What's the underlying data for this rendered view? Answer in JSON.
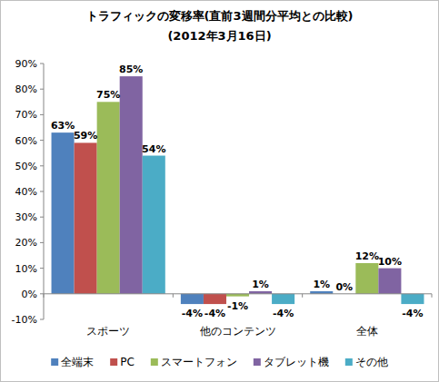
{
  "chart_data": {
    "type": "bar",
    "title": "トラフィックの変移率(直前3週間分平均との比較)",
    "subtitle": "(2012年3月16日)",
    "categories": [
      "スポーツ",
      "他のコンテンツ",
      "全体"
    ],
    "series": [
      {
        "name": "全端末",
        "color": "#4f81bd",
        "values": [
          63,
          -4,
          1
        ],
        "value_labels": [
          "63%",
          "-4%",
          "1%"
        ]
      },
      {
        "name": "PC",
        "color": "#c0504d",
        "values": [
          59,
          -4,
          0
        ],
        "value_labels": [
          "59%",
          "-4%",
          "0%"
        ]
      },
      {
        "name": "スマートフォン",
        "color": "#9bbb59",
        "values": [
          75,
          -1,
          12
        ],
        "value_labels": [
          "75%",
          "-1%",
          "12%"
        ]
      },
      {
        "name": "タブレット機",
        "color": "#8064a2",
        "values": [
          85,
          1,
          10
        ],
        "value_labels": [
          "85%",
          "1%",
          "10%"
        ]
      },
      {
        "name": "その他",
        "color": "#4bacc6",
        "values": [
          54,
          -4,
          -4
        ],
        "value_labels": [
          "54%",
          "-4%",
          "-4%"
        ]
      }
    ],
    "ylim": [
      -10,
      90
    ],
    "yticks": [
      {
        "value": -10,
        "label": "-10%"
      },
      {
        "value": 0,
        "label": "0%"
      },
      {
        "value": 10,
        "label": "10%"
      },
      {
        "value": 20,
        "label": "20%"
      },
      {
        "value": 30,
        "label": "30%"
      },
      {
        "value": 40,
        "label": "40%"
      },
      {
        "value": 50,
        "label": "50%"
      },
      {
        "value": 60,
        "label": "60%"
      },
      {
        "value": 70,
        "label": "70%"
      },
      {
        "value": 80,
        "label": "80%"
      },
      {
        "value": 90,
        "label": "90%"
      }
    ],
    "grid": false,
    "legend": "bottom",
    "data_labels": true
  }
}
